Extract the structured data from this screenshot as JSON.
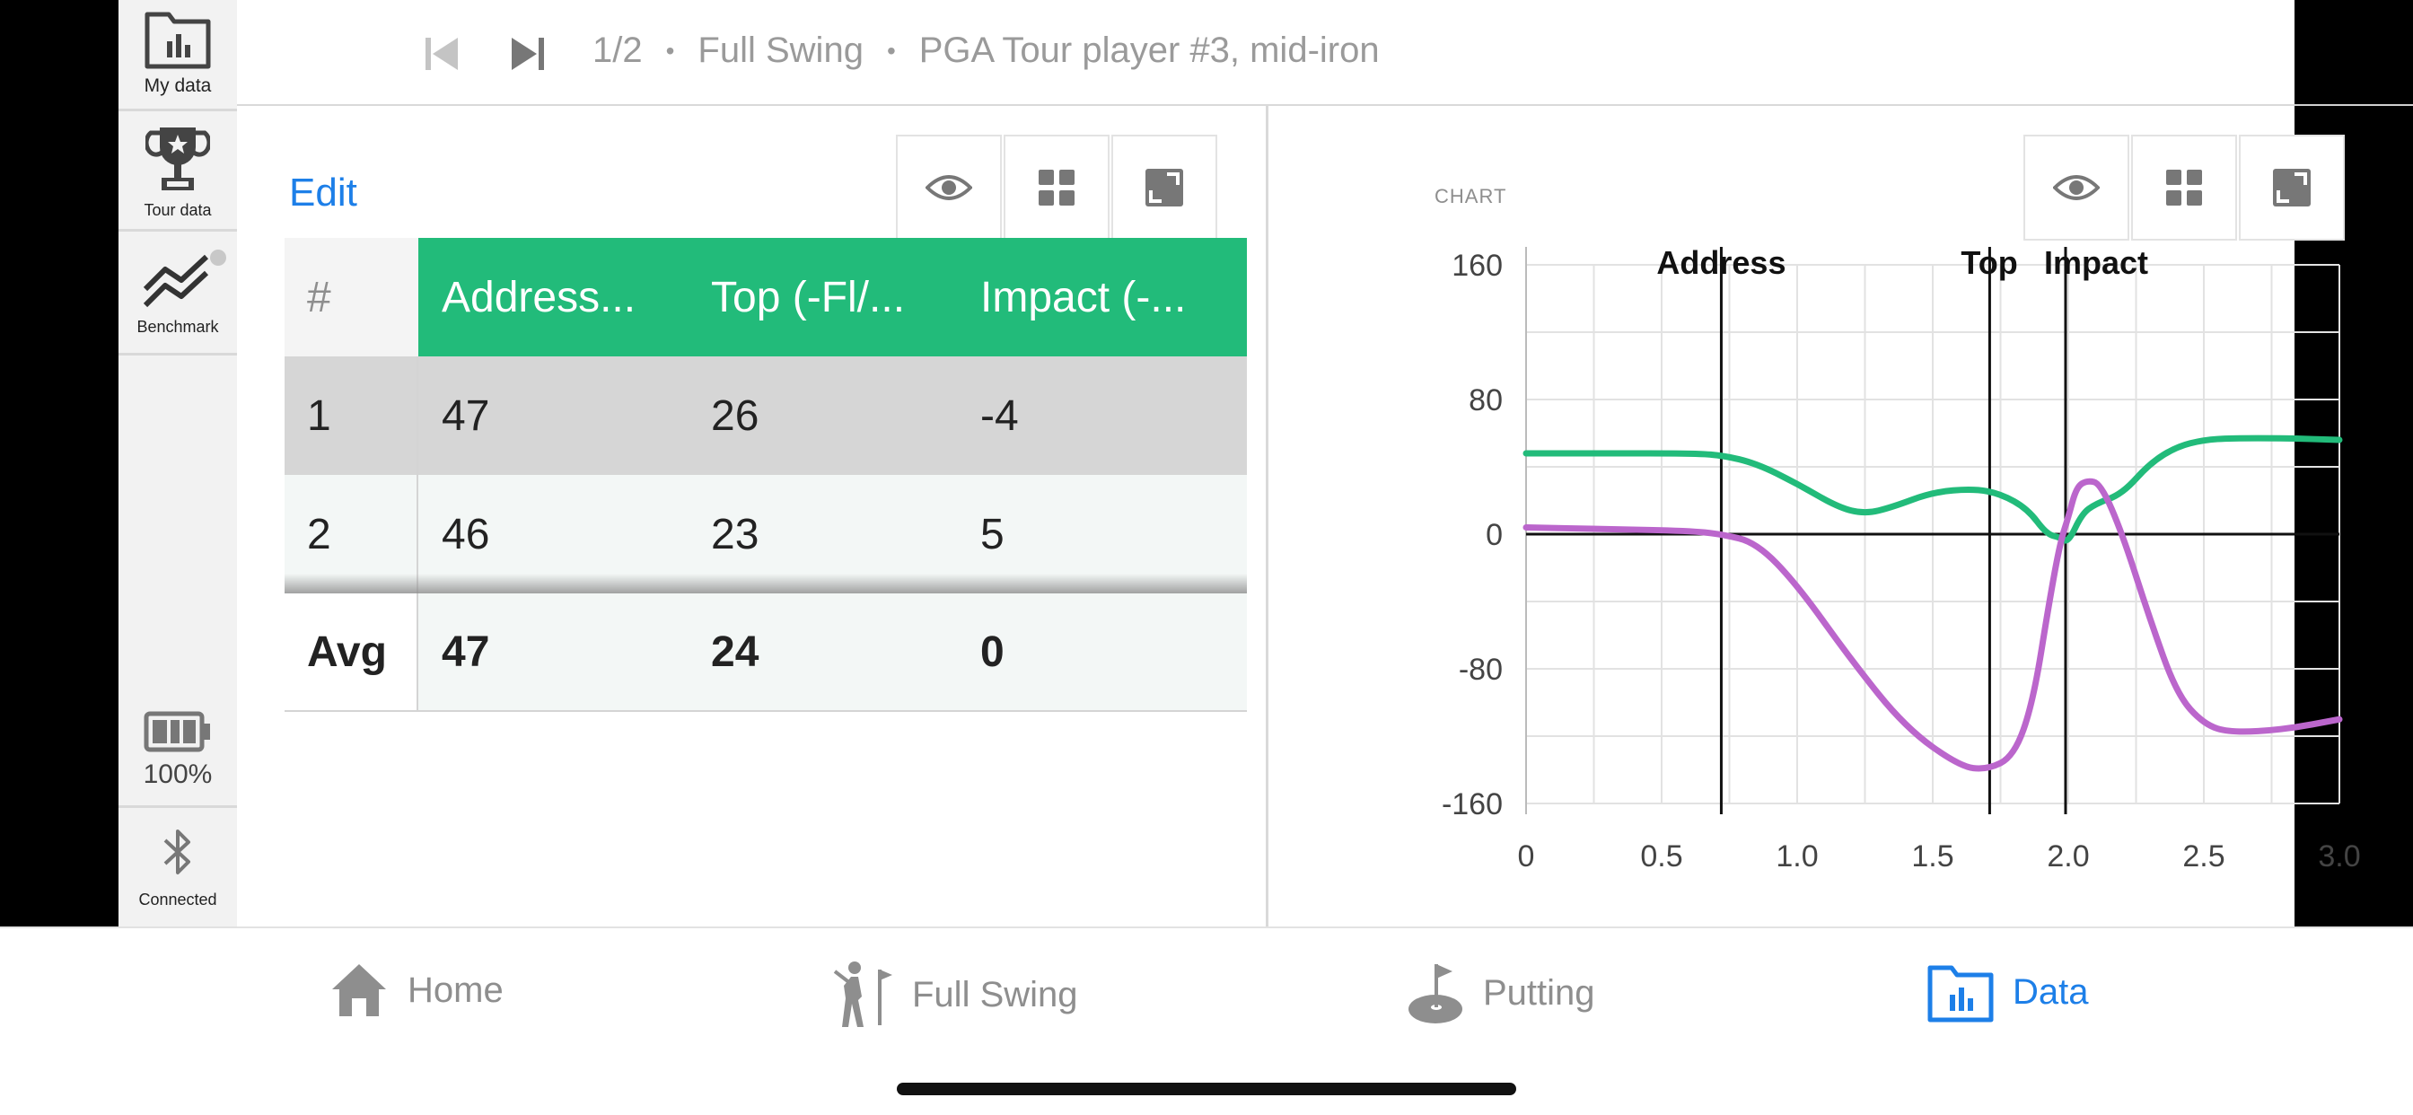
{
  "sidebar": {
    "items": [
      {
        "label": "My data",
        "icon": "folder-chart-icon"
      },
      {
        "label": "Tour data",
        "icon": "trophy-icon"
      },
      {
        "label": "Benchmark",
        "icon": "benchmark-chart-icon"
      }
    ],
    "battery": {
      "label": "100%",
      "icon": "battery-icon",
      "level": 1.0
    },
    "bluetooth": {
      "label": "Connected",
      "icon": "bluetooth-icon"
    }
  },
  "header": {
    "prev_icon": "skip-previous-icon",
    "next_icon": "skip-next-icon",
    "position": "1/2",
    "mode": "Full Swing",
    "session": "PGA Tour player #3, mid-iron",
    "separator": "•"
  },
  "table_panel": {
    "edit_label": "Edit",
    "toolbar": [
      "eye-icon",
      "grid-icon",
      "expand-icon"
    ],
    "columns": [
      "#",
      "Address...",
      "Top (-Fl/...",
      "Impact (-..."
    ],
    "rows": [
      [
        "1",
        "47",
        "26",
        "-4"
      ],
      [
        "2",
        "46",
        "23",
        "5"
      ]
    ],
    "avg": [
      "Avg",
      "47",
      "24",
      "0"
    ]
  },
  "chart_panel": {
    "label": "CHART",
    "toolbar": [
      "eye-icon",
      "grid-icon",
      "expand-icon"
    ]
  },
  "chart_data": {
    "type": "line",
    "title": "",
    "xlabel": "",
    "ylabel": "",
    "xlim": [
      0,
      3.0
    ],
    "ylim": [
      -160,
      160
    ],
    "xticks": [
      "0",
      "0.5",
      "1.0",
      "1.5",
      "2.0",
      "2.5",
      "3.0"
    ],
    "yticks": [
      "160",
      "80",
      "0",
      "-80",
      "-160"
    ],
    "grid": true,
    "events": [
      {
        "label": "Address",
        "x": 0.72
      },
      {
        "label": "Top",
        "x": 1.71
      },
      {
        "label": "Impact",
        "x": 1.99
      }
    ],
    "series": [
      {
        "color": "#22bb7a",
        "x": [
          0,
          0.3,
          0.6,
          0.72,
          0.85,
          1.0,
          1.15,
          1.25,
          1.35,
          1.5,
          1.65,
          1.75,
          1.85,
          1.92,
          1.97,
          2.0,
          2.05,
          2.1,
          2.2,
          2.3,
          2.4,
          2.5,
          2.6,
          2.8,
          3.0
        ],
        "y": [
          48,
          48,
          48,
          47,
          42,
          30,
          16,
          12,
          16,
          25,
          27,
          24,
          15,
          0,
          -2,
          -5,
          12,
          18,
          24,
          42,
          52,
          56,
          57,
          57,
          56
        ]
      },
      {
        "color": "#bb66cc",
        "x": [
          0,
          0.3,
          0.6,
          0.72,
          0.85,
          1.0,
          1.2,
          1.4,
          1.6,
          1.7,
          1.8,
          1.87,
          1.93,
          1.97,
          2.0,
          2.03,
          2.07,
          2.12,
          2.2,
          2.3,
          2.4,
          2.5,
          2.6,
          2.8,
          3.0
        ],
        "y": [
          4,
          3,
          2,
          0,
          -5,
          -30,
          -75,
          -115,
          -138,
          -140,
          -132,
          -100,
          -40,
          -5,
          10,
          28,
          32,
          30,
          0,
          -50,
          -95,
          -113,
          -118,
          -116,
          -110
        ]
      }
    ]
  },
  "bottom_nav": {
    "items": [
      {
        "label": "Home",
        "icon": "home-icon"
      },
      {
        "label": "Full Swing",
        "icon": "golfer-icon"
      },
      {
        "label": "Putting",
        "icon": "putting-green-icon"
      },
      {
        "label": "Data",
        "icon": "folder-chart-icon",
        "active": true
      }
    ]
  },
  "colors": {
    "accent": "#1d7fe8",
    "header_green": "#22bb7a",
    "series_green": "#22bb7a",
    "series_purple": "#bb66cc"
  }
}
